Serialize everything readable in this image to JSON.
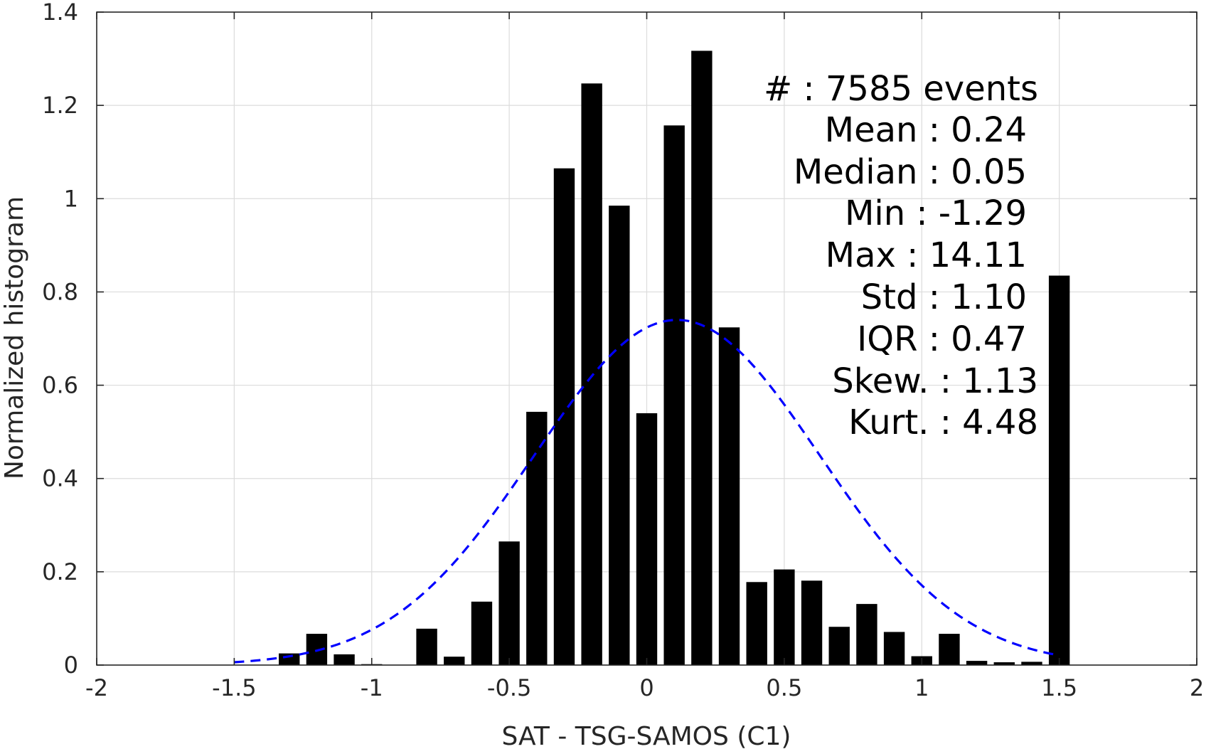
{
  "chart_data": {
    "type": "bar",
    "title": "",
    "xlabel": "SAT - TSG-SAMOS (C1)",
    "ylabel": "Normalized histogram",
    "xlim": [
      -2,
      2
    ],
    "ylim": [
      0,
      1.4
    ],
    "xticks": [
      -2,
      -1.5,
      -1,
      -0.5,
      0,
      0.5,
      1,
      1.5,
      2
    ],
    "xtick_labels": [
      "-2",
      "-1.5",
      "-1",
      "-0.5",
      "0",
      "0.5",
      "1",
      "1.5",
      "2"
    ],
    "yticks": [
      0,
      0.2,
      0.4,
      0.6,
      0.8,
      1,
      1.2,
      1.4
    ],
    "ytick_labels": [
      "0",
      "0.2",
      "0.4",
      "0.6",
      "0.8",
      "1",
      "1.2",
      "1.4"
    ],
    "grid": true,
    "bar_color": "#000000",
    "bin_width": 0.1,
    "bars": {
      "x": [
        -1.3,
        -1.2,
        -1.1,
        -1.0,
        -0.9,
        -0.8,
        -0.7,
        -0.6,
        -0.5,
        -0.4,
        -0.3,
        -0.2,
        -0.1,
        0.0,
        0.1,
        0.2,
        0.3,
        0.4,
        0.5,
        0.6,
        0.7,
        0.8,
        0.9,
        1.0,
        1.1,
        1.2,
        1.3,
        1.4,
        1.5
      ],
      "values": [
        0.025,
        0.067,
        0.023,
        0.002,
        0.0,
        0.078,
        0.018,
        0.136,
        0.265,
        0.543,
        1.065,
        1.247,
        0.985,
        0.54,
        1.157,
        1.317,
        0.724,
        0.178,
        0.205,
        0.181,
        0.082,
        0.131,
        0.071,
        0.019,
        0.067,
        0.009,
        0.006,
        0.007,
        0.835
      ]
    },
    "fit_curve": {
      "style": "dashed",
      "color": "#0000ff",
      "mean": 0.11,
      "peak": 0.74,
      "sigma": 0.52,
      "x_range": [
        -1.5,
        1.5
      ]
    },
    "annotation_lines": [
      "#  : 7585 events",
      "Mean : 0.24",
      "Median : 0.05",
      "Min : -1.29",
      "Max : 14.11",
      "Std : 1.10",
      "IQR : 0.47",
      "Skew. : 1.13",
      "Kurt. : 4.48"
    ]
  }
}
